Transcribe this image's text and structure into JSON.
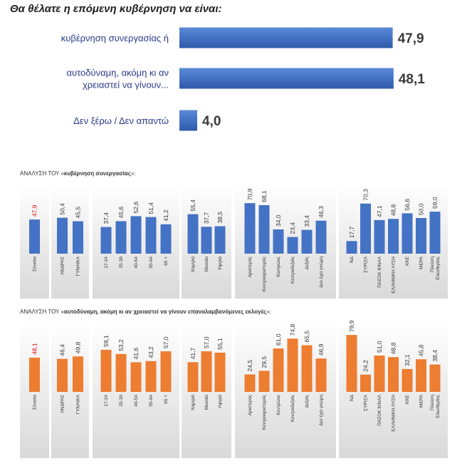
{
  "chart_data": [
    {
      "type": "bar",
      "orientation": "horizontal",
      "title": "Θα θέλατε η επόμενη κυβέρνηση να είναι:",
      "categories": [
        [
          "κυβέρνηση συνεργασίας ή"
        ],
        [
          "αυτοδύναμη, ακόμη κι αν",
          "χρειαστεί να γίνουν..."
        ],
        [
          "Δεν ξέρω / Δεν απαντώ"
        ]
      ],
      "values": [
        47.9,
        48.1,
        4.0
      ],
      "value_labels": [
        "47,9",
        "48,1",
        "4,0"
      ],
      "xlim": [
        0,
        55
      ],
      "color": "#4472c4",
      "grid": false
    },
    {
      "type": "bar",
      "title_prefix": "ΑΝΑΛΥΣΗ ΤΟΥ «",
      "title_bold": "κυβέρνηση συνεργασίας",
      "title_suffix": "»:",
      "color": "#4472c4",
      "highlight_color": "#d40000",
      "ylim": [
        0,
        100
      ],
      "groups": [
        {
          "categories": [
            [
              "Σύνολο"
            ]
          ],
          "values": [
            47.9
          ],
          "value_labels": [
            "47,9"
          ],
          "highlight": [
            0
          ]
        },
        {
          "categories": [
            [
              "ΑΝΔΡΑΣ"
            ],
            [
              "ΓΥΝΑΙΚΑ"
            ]
          ],
          "values": [
            50.4,
            45.5
          ],
          "value_labels": [
            "50,4",
            "45,5"
          ]
        },
        {
          "categories": [
            [
              "17-24"
            ],
            [
              "25-39"
            ],
            [
              "40-54"
            ],
            [
              "55-64"
            ],
            [
              "65 +"
            ]
          ],
          "values": [
            37.4,
            45.6,
            52.6,
            51.4,
            41.2
          ],
          "value_labels": [
            "37,4",
            "45,6",
            "52,6",
            "51,4",
            "41,2"
          ]
        },
        {
          "categories": [
            [
              "Χαμηλό"
            ],
            [
              "Μεσαίο"
            ],
            [
              "Υψηλό"
            ]
          ],
          "values": [
            55.4,
            37.7,
            38.5
          ],
          "value_labels": [
            "55,4",
            "37,7",
            "38,5"
          ]
        },
        {
          "categories": [
            [
              "Αριστερός"
            ],
            [
              "Κεντροαριστερός"
            ],
            [
              "Κεντρώος"
            ],
            [
              "Κεντροδεξιός"
            ],
            [
              "Δεξιός"
            ],
            [
              "Δεν έχει γνώμη"
            ]
          ],
          "values": [
            70.9,
            68.1,
            34.0,
            23.4,
            33.4,
            46.3
          ],
          "value_labels": [
            "70,9",
            "68,1",
            "34,0",
            "23,4",
            "33,4",
            "46,3"
          ]
        },
        {
          "categories": [
            [
              "ΝΔ"
            ],
            [
              "ΣΥΡΙΖΑ"
            ],
            [
              "ΠΑΣΟΚ ΚΙΝΑΛ"
            ],
            [
              "ΕΛΛΗΝΙΚΗ ΛΥΣΗ"
            ],
            [
              "ΚΚΕ"
            ],
            [
              "ΜΕΡΑ"
            ],
            [
              "Πλεύση",
              "Ελευθερίας"
            ]
          ],
          "values": [
            17.7,
            70.3,
            47.1,
            48.8,
            56.6,
            50.0,
            59.0
          ],
          "value_labels": [
            "17,7",
            "70,3",
            "47,1",
            "48,8",
            "56,6",
            "50,0",
            "59,0"
          ]
        }
      ]
    },
    {
      "type": "bar",
      "title_prefix": "ΑΝΑΛΥΣΗ ΤΟΥ «",
      "title_bold": "αυτοδύναμη, ακόμη κι αν χρειαστεί να γίνουν επαναλαμβανόμενες εκλογές",
      "title_suffix": "»:",
      "color": "#ed7d31",
      "highlight_color": "#d40000",
      "ylim": [
        0,
        100
      ],
      "groups": [
        {
          "categories": [
            [
              "Σύνολο"
            ]
          ],
          "values": [
            48.1
          ],
          "value_labels": [
            "48,1"
          ],
          "highlight": [
            0
          ]
        },
        {
          "categories": [
            [
              "ΑΝΔΡΑΣ"
            ],
            [
              "ΓΥΝΑΙΚΑ"
            ]
          ],
          "values": [
            46.4,
            49.8
          ],
          "value_labels": [
            "46,4",
            "49,8"
          ]
        },
        {
          "categories": [
            [
              "17-24"
            ],
            [
              "25-39"
            ],
            [
              "40-54"
            ],
            [
              "55-64"
            ],
            [
              "65 +"
            ]
          ],
          "values": [
            59.1,
            53.2,
            41.6,
            43.2,
            57.0
          ],
          "value_labels": [
            "59,1",
            "53,2",
            "41,6",
            "43,2",
            "57,0"
          ]
        },
        {
          "categories": [
            [
              "Χαμηλό"
            ],
            [
              "Μεσαίο"
            ],
            [
              "Υψηλό"
            ]
          ],
          "values": [
            41.7,
            57.0,
            55.1
          ],
          "value_labels": [
            "41,7",
            "57,0",
            "55,1"
          ]
        },
        {
          "categories": [
            [
              "Αριστερός"
            ],
            [
              "Κεντροαριστερός"
            ],
            [
              "Κεντρώος"
            ],
            [
              "Κεντροδεξιός"
            ],
            [
              "Δεξιός"
            ],
            [
              "Δεν έχει γνώμη"
            ]
          ],
          "values": [
            24.5,
            29.5,
            61.0,
            74.8,
            65.5,
            46.9
          ],
          "value_labels": [
            "24,5",
            "29,5",
            "61,0",
            "74,8",
            "65,5",
            "46,9"
          ]
        },
        {
          "categories": [
            [
              "ΝΔ"
            ],
            [
              "ΣΥΡΙΖΑ"
            ],
            [
              "ΠΑΣΟΚ ΚΙΝΑΛ"
            ],
            [
              "ΕΛΛΗΝΙΚΗ ΛΥΣΗ"
            ],
            [
              "ΚΚΕ"
            ],
            [
              "ΜΕΡΑ"
            ],
            [
              "Πλεύση",
              "Ελευθερίας"
            ]
          ],
          "values": [
            79.9,
            24.2,
            51.0,
            48.8,
            32.1,
            45.8,
            38.4
          ],
          "value_labels": [
            "79,9",
            "24,2",
            "51,0",
            "48,8",
            "32,1",
            "45,8",
            "38,4"
          ]
        }
      ]
    }
  ]
}
